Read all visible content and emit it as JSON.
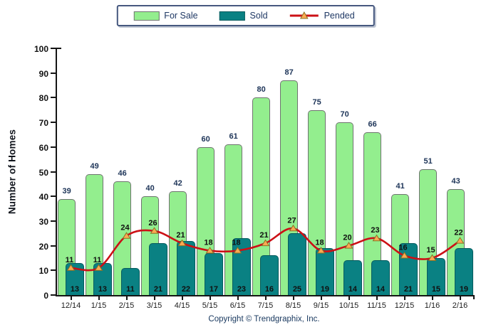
{
  "legend": {
    "for_sale": "For Sale",
    "sold": "Sold",
    "pended": "Pended"
  },
  "chart_data": {
    "type": "bar",
    "title": "",
    "ylabel": "Number of Homes",
    "xlabel": "",
    "ylim": [
      0,
      100
    ],
    "yticks": [
      0,
      10,
      20,
      30,
      40,
      50,
      60,
      70,
      80,
      90,
      100
    ],
    "grid": false,
    "legend_position": "top-center",
    "categories": [
      "12/14",
      "1/15",
      "2/15",
      "3/15",
      "4/15",
      "5/15",
      "6/15",
      "7/15",
      "8/15",
      "9/15",
      "10/15",
      "11/15",
      "12/15",
      "1/16",
      "2/16"
    ],
    "series": [
      {
        "name": "For Sale",
        "type": "bar",
        "color": "#93EE8E",
        "values": [
          39,
          49,
          46,
          40,
          42,
          60,
          61,
          80,
          87,
          75,
          70,
          66,
          41,
          51,
          43
        ]
      },
      {
        "name": "Sold",
        "type": "bar",
        "color": "#0A8183",
        "values": [
          13,
          13,
          11,
          21,
          22,
          17,
          23,
          16,
          25,
          19,
          14,
          14,
          21,
          15,
          19
        ]
      },
      {
        "name": "Pended",
        "type": "line",
        "color": "#CC1016",
        "marker": "triangle",
        "marker_color": "#FCA952",
        "values": [
          11,
          11,
          24,
          26,
          21,
          18,
          18,
          21,
          27,
          18,
          20,
          23,
          16,
          15,
          22
        ]
      }
    ]
  },
  "footer": {
    "copyright": "Copyright © Trendgraphix, Inc."
  },
  "colors": {
    "for_sale_fill": "#93EE8E",
    "for_sale_border": "#6F7470",
    "sold_fill": "#0A8183",
    "sold_border": "#075B5E",
    "line_red": "#CC1016",
    "marker_fill": "#FCA952",
    "marker_stroke": "#8A7325",
    "navy": "#1D3458",
    "text_black": "#101010",
    "legend_text": "#1F3864",
    "legend_border": "#46587F",
    "footer_navy": "#17375E"
  }
}
